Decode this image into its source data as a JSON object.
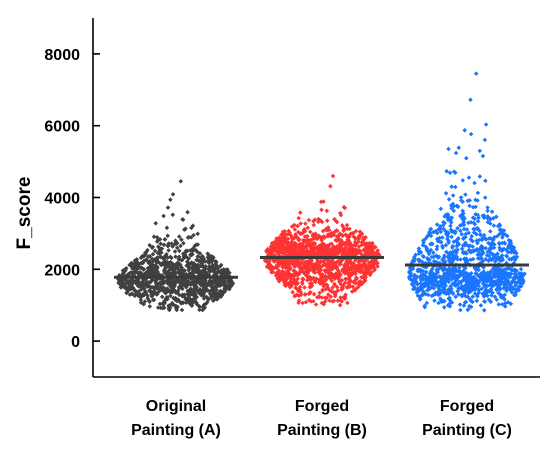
{
  "chart_data": {
    "type": "scatter",
    "title": "",
    "xlabel": "",
    "ylabel": "F_score",
    "ylim": [
      -1000,
      9000
    ],
    "yticks": [
      0,
      2000,
      4000,
      6000,
      8000
    ],
    "grid": false,
    "legend": "none",
    "categories": [
      {
        "line1": "Original",
        "line2": "Painting (A)"
      },
      {
        "line1": "Forged",
        "line2": "Painting (B)"
      },
      {
        "line1": "Forged",
        "line2": "Painting (C)"
      }
    ],
    "series": [
      {
        "color": "#404040",
        "mean": 1780,
        "min": 800,
        "max": 4450,
        "q1": 1450,
        "q3": 2050,
        "core": 1700,
        "count": 1100
      },
      {
        "color": "#ff3333",
        "mean": 2330,
        "min": 1000,
        "max": 4600,
        "q1": 1950,
        "q3": 2700,
        "core": 2300,
        "count": 1300
      },
      {
        "color": "#1a75ff",
        "mean": 2120,
        "min": 850,
        "max": 7450,
        "q1": 1500,
        "q3": 2600,
        "core": 1900,
        "count": 1100
      }
    ]
  }
}
